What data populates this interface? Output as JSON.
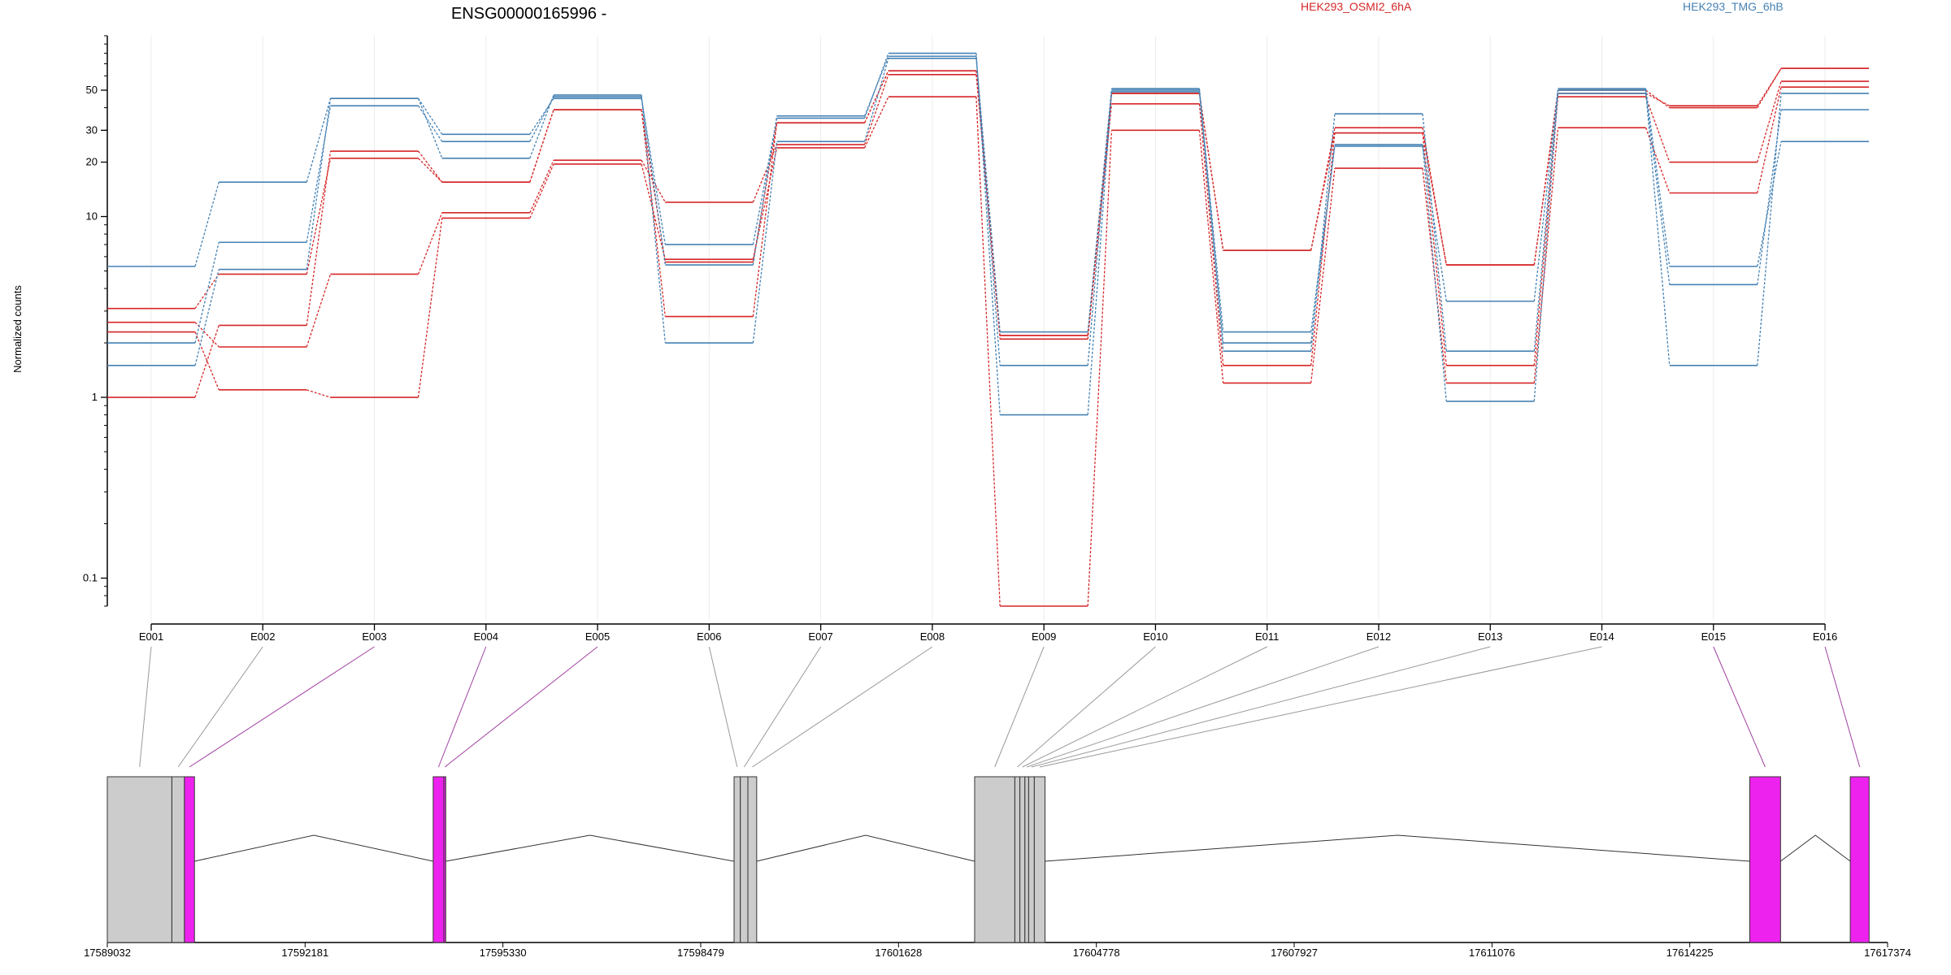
{
  "chart_data": {
    "type": "line",
    "title": "ENSG00000165996 -",
    "ylabel": "Normalized counts",
    "xlabel": "",
    "y_scale": "log",
    "ylim": [
      0.07,
      100
    ],
    "y_ticks": [
      0.1,
      1,
      10,
      20,
      30,
      50
    ],
    "y_tick_labels": [
      "0.1",
      "1",
      "10",
      "20",
      "30",
      "50"
    ],
    "grid": "vertical",
    "legend_position": "top-right",
    "categories": [
      "E001",
      "E002",
      "E003",
      "E004",
      "E005",
      "E006",
      "E007",
      "E008",
      "E009",
      "E010",
      "E011",
      "E012",
      "E013",
      "E014",
      "E015",
      "E016"
    ],
    "series": [
      {
        "name": "HEK293_OSMI2_6hA",
        "group": "OSMI2",
        "color": "#d62728",
        "values": [
          2.3,
          1.1,
          1.0,
          9.8,
          19.5,
          5.8,
          24,
          46,
          0.07,
          30,
          1.2,
          18.5,
          1.2,
          31,
          13.5,
          52
        ]
      },
      {
        "name": "",
        "group": "OSMI2",
        "color": "#d62728",
        "values": [
          2.6,
          1.9,
          4.8,
          10.5,
          20.5,
          12,
          25,
          61,
          2.1,
          42,
          1.5,
          29,
          1.5,
          46,
          20,
          56
        ]
      },
      {
        "name": "",
        "group": "OSMI2",
        "color": "#d62728",
        "values": [
          3.1,
          4.8,
          21,
          15.5,
          39,
          2.8,
          33,
          64,
          2.2,
          48,
          6.5,
          31,
          5.4,
          48,
          41,
          66
        ]
      },
      {
        "name": "",
        "group": "OSMI2",
        "color": "#d62728",
        "values": [
          1.0,
          2.5,
          23,
          15.5,
          39,
          5.6,
          33,
          64,
          2.2,
          48,
          6.5,
          29,
          5.4,
          50,
          40,
          66
        ]
      },
      {
        "name": "HEK293_TMG_6hB",
        "group": "TMG",
        "color": "#4682b4",
        "values": [
          5.3,
          15.5,
          45,
          28.5,
          45,
          7.0,
          35,
          80,
          0.8,
          49,
          1.8,
          37,
          1.8,
          51,
          5.3,
          26
        ]
      },
      {
        "name": "",
        "group": "TMG",
        "color": "#4682b4",
        "values": [
          2.0,
          7.2,
          41,
          26,
          46,
          5.4,
          36,
          77,
          1.5,
          50,
          2.0,
          25,
          0.95,
          48,
          4.2,
          39
        ]
      },
      {
        "name": "",
        "group": "TMG",
        "color": "#4682b4",
        "values": [
          1.5,
          5.1,
          45,
          21,
          47,
          2.0,
          26,
          75,
          2.3,
          51,
          2.3,
          24.5,
          3.4,
          50,
          1.5,
          48
        ]
      }
    ],
    "gene_model": {
      "x_ticks": [
        17589032,
        17592181,
        17595330,
        17598479,
        17601628,
        17604778,
        17607927,
        17611076,
        17614225,
        17617374
      ],
      "x_tick_labels": [
        "17589032",
        "17592181",
        "17595330",
        "17598479",
        "17601628",
        "17604778",
        "17607927",
        "17611076",
        "17614225",
        "17617374"
      ],
      "xlim": [
        17589032,
        17617374
      ],
      "exons": [
        {
          "id": "E001",
          "start": 17589032,
          "end": 17590060,
          "color": "#cccccc"
        },
        {
          "id": "E002",
          "start": 17590060,
          "end": 17590260,
          "color": "#cccccc"
        },
        {
          "id": "E003",
          "start": 17590260,
          "end": 17590420,
          "color": "#ee22ee"
        },
        {
          "id": "E004",
          "start": 17594220,
          "end": 17594390,
          "color": "#ee22ee"
        },
        {
          "id": "E005",
          "start": 17594390,
          "end": 17594420,
          "color": "#ee22ee"
        },
        {
          "id": "E006",
          "start": 17599010,
          "end": 17599110,
          "color": "#cccccc"
        },
        {
          "id": "E007",
          "start": 17599110,
          "end": 17599230,
          "color": "#cccccc"
        },
        {
          "id": "E008",
          "start": 17599230,
          "end": 17599370,
          "color": "#cccccc"
        },
        {
          "id": "E009",
          "start": 17602840,
          "end": 17603480,
          "color": "#cccccc"
        },
        {
          "id": "E010",
          "start": 17603480,
          "end": 17603560,
          "color": "#cccccc"
        },
        {
          "id": "E011",
          "start": 17603560,
          "end": 17603640,
          "color": "#cccccc"
        },
        {
          "id": "E012",
          "start": 17603640,
          "end": 17603700,
          "color": "#cccccc"
        },
        {
          "id": "E013",
          "start": 17603700,
          "end": 17603790,
          "color": "#cccccc"
        },
        {
          "id": "E014",
          "start": 17603790,
          "end": 17603960,
          "color": "#cccccc"
        },
        {
          "id": "E015",
          "start": 17615180,
          "end": 17615670,
          "color": "#ee22ee"
        },
        {
          "id": "E016",
          "start": 17616780,
          "end": 17617080,
          "color": "#ee22ee"
        }
      ],
      "introns": [
        [
          17590420,
          17594220
        ],
        [
          17594420,
          17599010
        ],
        [
          17599370,
          17602840
        ],
        [
          17603960,
          17615180
        ],
        [
          17615670,
          17616780
        ]
      ]
    }
  }
}
